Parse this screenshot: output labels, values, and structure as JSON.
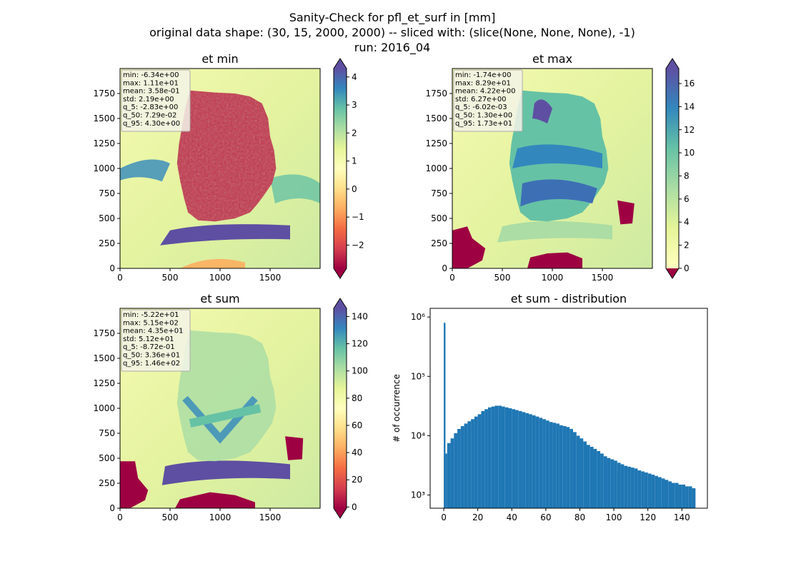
{
  "suptitle": {
    "line1": "Sanity-Check for pfl_et_surf in [mm]",
    "line2": "original data shape: (30, 15, 2000, 2000) -- sliced with: (slice(None, None, None), -1)",
    "line3": "run: 2016_04"
  },
  "colors": {
    "spectral_r": [
      "#9e0142",
      "#d53e4f",
      "#f46d43",
      "#fdae61",
      "#fee08b",
      "#ffffbf",
      "#e6f598",
      "#abdda4",
      "#66c2a5",
      "#3288bd",
      "#5e4fa2"
    ],
    "hist_bar": "#1f77b4",
    "under": "#9e0142",
    "over": "#5e4fa2"
  },
  "chart_data": [
    {
      "type": "heatmap",
      "title": "et min",
      "xlim": [
        0,
        2000
      ],
      "ylim": [
        0,
        2000
      ],
      "xticks": [
        "0",
        "500",
        "1000",
        "1500"
      ],
      "yticks": [
        "0",
        "250",
        "500",
        "750",
        "1000",
        "1250",
        "1500",
        "1750"
      ],
      "colorbar": {
        "range": [
          -2.83,
          4.3
        ],
        "ticks": [
          "−2",
          "−1",
          "0",
          "1",
          "2",
          "3",
          "4"
        ],
        "extend": "both"
      },
      "stats": [
        "min: -6.34e+00",
        "max: 1.11e+01",
        "mean: 3.58e-01",
        "std: 2.19e+00",
        "q_5: -2.83e+00",
        "q_50: 7.29e-02",
        "q_95: 4.30e+00"
      ]
    },
    {
      "type": "heatmap",
      "title": "et max",
      "xlim": [
        0,
        2000
      ],
      "ylim": [
        0,
        2000
      ],
      "xticks": [
        "0",
        "500",
        "1000",
        "1500"
      ],
      "yticks": [
        "0",
        "250",
        "500",
        "750",
        "1000",
        "1250",
        "1500",
        "1750"
      ],
      "colorbar": {
        "range": [
          -0.006,
          17.3
        ],
        "ticks": [
          "0",
          "2",
          "4",
          "6",
          "8",
          "10",
          "12",
          "14",
          "16"
        ],
        "extend": "both"
      },
      "stats": [
        "min: -1.74e+00",
        "max: 8.29e+01",
        "mean: 4.22e+00",
        "std: 6.27e+00",
        "q_5: -6.02e-03",
        "q_50: 1.30e+00",
        "q_95: 1.73e+01"
      ]
    },
    {
      "type": "heatmap",
      "title": "et sum",
      "xlim": [
        0,
        2000
      ],
      "ylim": [
        0,
        2000
      ],
      "xticks": [
        "0",
        "500",
        "1000",
        "1500"
      ],
      "yticks": [
        "0",
        "250",
        "500",
        "750",
        "1000",
        "1250",
        "1500",
        "1750"
      ],
      "colorbar": {
        "range": [
          -0.87,
          146
        ],
        "ticks": [
          "0",
          "20",
          "40",
          "60",
          "80",
          "100",
          "120",
          "140"
        ],
        "extend": "both"
      },
      "stats": [
        "min: -5.22e+01",
        "max: 5.15e+02",
        "mean: 4.35e+01",
        "std: 5.12e+01",
        "q_5: -8.72e-01",
        "q_50: 3.36e+01",
        "q_95: 1.46e+02"
      ]
    },
    {
      "type": "bar",
      "title": "et sum - distribution",
      "ylabel": "# of occurrence",
      "yscale": "log",
      "ylim": [
        600,
        1400000
      ],
      "xlim": [
        -8,
        155
      ],
      "xticks": [
        "0",
        "20",
        "40",
        "60",
        "80",
        "100",
        "120",
        "140"
      ],
      "yticks": [
        "10³",
        "10⁴",
        "10⁵",
        "10⁶"
      ],
      "x": [
        0,
        1,
        2,
        4,
        6,
        8,
        10,
        12,
        14,
        16,
        18,
        20,
        22,
        24,
        26,
        28,
        30,
        32,
        34,
        36,
        38,
        40,
        42,
        44,
        46,
        48,
        50,
        52,
        54,
        56,
        58,
        60,
        62,
        64,
        66,
        68,
        70,
        72,
        74,
        76,
        78,
        80,
        82,
        84,
        86,
        88,
        90,
        92,
        94,
        96,
        98,
        100,
        102,
        104,
        106,
        108,
        110,
        112,
        114,
        116,
        118,
        120,
        122,
        124,
        126,
        128,
        130,
        132,
        134,
        136,
        138,
        140,
        142,
        144,
        146
      ],
      "values": [
        800000,
        5000,
        7500,
        9000,
        11000,
        13000,
        14500,
        16000,
        17500,
        19000,
        21000,
        23000,
        26000,
        28000,
        30000,
        31000,
        32000,
        32000,
        31000,
        30000,
        29000,
        28000,
        27000,
        26000,
        25000,
        24000,
        23000,
        22000,
        21000,
        20000,
        19000,
        18000,
        17000,
        16500,
        16000,
        15000,
        14500,
        14000,
        13000,
        11500,
        10000,
        9000,
        8000,
        7000,
        6500,
        6000,
        5500,
        5000,
        4500,
        4200,
        4000,
        3800,
        3500,
        3300,
        3100,
        3000,
        2900,
        2800,
        2600,
        2500,
        2400,
        2300,
        2200,
        2100,
        2000,
        1900,
        1800,
        1700,
        1600,
        1600,
        1500,
        1500,
        1400,
        1400,
        1300
      ]
    }
  ]
}
